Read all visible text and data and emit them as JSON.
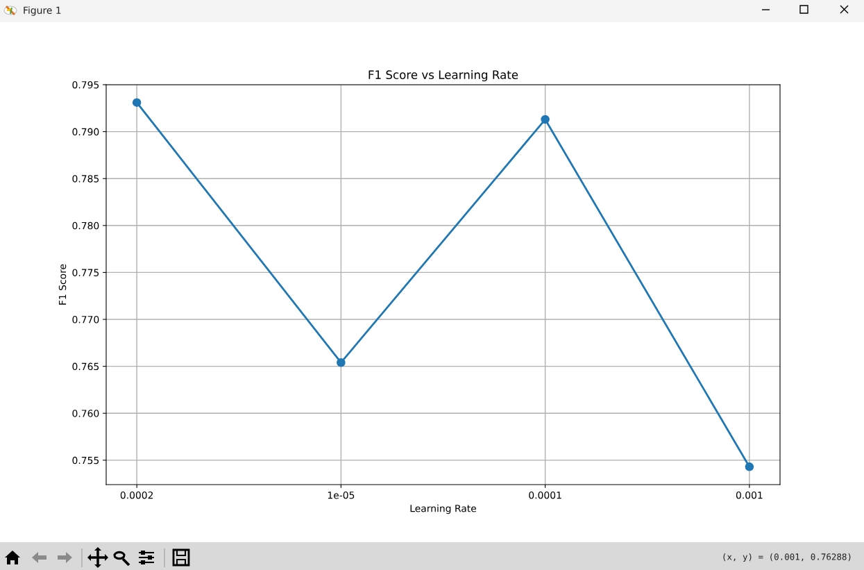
{
  "chart_data": {
    "type": "line",
    "title": "F1 Score vs Learning Rate",
    "xlabel": "Learning Rate",
    "ylabel": "F1 Score",
    "categories": [
      "0.0002",
      "1e-05",
      "0.0001",
      "0.001"
    ],
    "series": [
      {
        "color": "#1f77b4",
        "values": [
          0.7931,
          0.7654,
          0.7913,
          0.7543
        ]
      }
    ],
    "ylim": [
      0.7524,
      0.795
    ],
    "yticks": [
      0.755,
      {
        "value": 0.76,
        "label": "0.760"
      },
      0.765,
      {
        "value": 0.77,
        "label": "0.770"
      },
      0.775,
      {
        "value": 0.78,
        "label": "0.780"
      },
      0.785,
      {
        "value": 0.79,
        "label": "0.790"
      },
      0.795
    ],
    "grid": true,
    "marker": "circle",
    "line_style": "solid",
    "annotations": [
      "Figure 1",
      "(x, y) = (0.001, 0.76288)"
    ]
  }
}
